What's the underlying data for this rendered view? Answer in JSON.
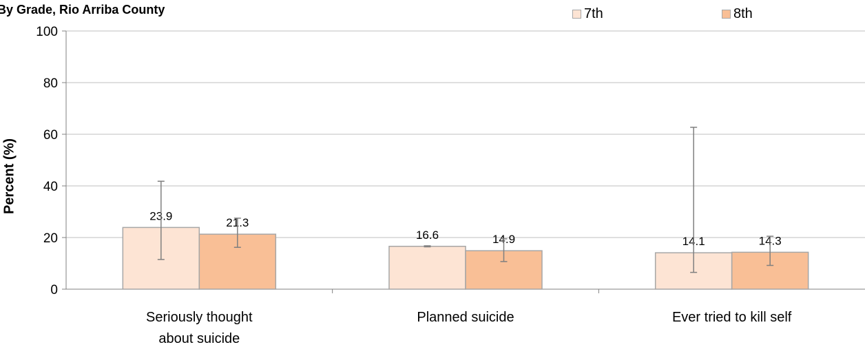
{
  "chart_data": {
    "type": "bar",
    "title": "By Grade, Rio Arriba County",
    "ylabel": "Percent (%)",
    "xlabel": "",
    "ylim": [
      0,
      100
    ],
    "yticks": [
      0,
      20,
      40,
      60,
      80,
      100
    ],
    "grid": true,
    "legend_position": "top-right",
    "categories": [
      [
        "Seriously thought",
        "about suicide"
      ],
      [
        "Planned suicide"
      ],
      [
        "Ever tried to kill self"
      ]
    ],
    "series": [
      {
        "name": "7th",
        "color": "#fde4d4",
        "values": [
          23.9,
          16.6,
          14.1
        ],
        "error_low": [
          11.5,
          16.4,
          6.5
        ],
        "error_high": [
          41.8,
          16.8,
          62.7
        ]
      },
      {
        "name": "8th",
        "color": "#f9bf96",
        "values": [
          21.3,
          14.9,
          14.3
        ],
        "error_low": [
          16.2,
          10.7,
          9.2
        ],
        "error_high": [
          27.5,
          19.5,
          20.5
        ]
      }
    ]
  }
}
